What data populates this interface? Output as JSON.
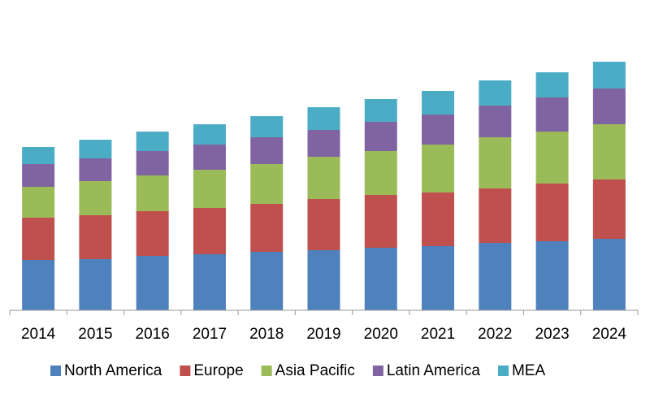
{
  "chart_data": {
    "type": "stacked-bar",
    "categories": [
      "2014",
      "2015",
      "2016",
      "2017",
      "2018",
      "2019",
      "2020",
      "2021",
      "2022",
      "2023",
      "2024"
    ],
    "series": [
      {
        "name": "North America",
        "color": "#4f81bd",
        "values": [
          62,
          63,
          67,
          69,
          72,
          74,
          77,
          79,
          83,
          85,
          88
        ]
      },
      {
        "name": "Europe",
        "color": "#c0504d",
        "values": [
          52,
          54,
          55,
          57,
          59,
          63,
          65,
          66,
          67,
          71,
          73
        ]
      },
      {
        "name": "Asia Pacific",
        "color": "#9bbb59",
        "values": [
          38,
          42,
          44,
          47,
          49,
          52,
          54,
          59,
          63,
          64,
          68
        ]
      },
      {
        "name": "Latin America",
        "color": "#8064a2",
        "values": [
          28,
          28,
          30,
          31,
          33,
          33,
          36,
          37,
          39,
          42,
          44
        ]
      },
      {
        "name": "MEA",
        "color": "#4bacc6",
        "values": [
          21,
          23,
          24,
          25,
          26,
          28,
          28,
          29,
          31,
          31,
          33
        ]
      }
    ],
    "ylim": [
      0,
      340
    ]
  }
}
